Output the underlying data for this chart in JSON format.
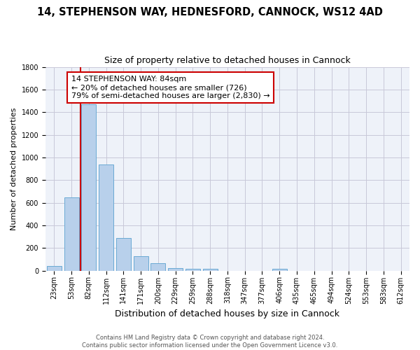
{
  "title1": "14, STEPHENSON WAY, HEDNESFORD, CANNOCK, WS12 4AD",
  "title2": "Size of property relative to detached houses in Cannock",
  "xlabel": "Distribution of detached houses by size in Cannock",
  "ylabel": "Number of detached properties",
  "footer1": "Contains HM Land Registry data © Crown copyright and database right 2024.",
  "footer2": "Contains public sector information licensed under the Open Government Licence v3.0.",
  "categories": [
    "23sqm",
    "53sqm",
    "82sqm",
    "112sqm",
    "141sqm",
    "171sqm",
    "200sqm",
    "229sqm",
    "259sqm",
    "288sqm",
    "318sqm",
    "347sqm",
    "377sqm",
    "406sqm",
    "435sqm",
    "465sqm",
    "494sqm",
    "524sqm",
    "553sqm",
    "583sqm",
    "612sqm"
  ],
  "values": [
    40,
    650,
    1470,
    935,
    290,
    130,
    65,
    25,
    15,
    15,
    0,
    0,
    0,
    15,
    0,
    0,
    0,
    0,
    0,
    0,
    0
  ],
  "bar_color": "#b8d0eb",
  "bar_edge_color": "#6aaad4",
  "vline_color": "#cc0000",
  "vline_x": 2,
  "annotation_text": "14 STEPHENSON WAY: 84sqm\n← 20% of detached houses are smaller (726)\n79% of semi-detached houses are larger (2,830) →",
  "ylim": [
    0,
    1800
  ],
  "yticks": [
    0,
    200,
    400,
    600,
    800,
    1000,
    1200,
    1400,
    1600,
    1800
  ],
  "grid_color": "#c8c8d8",
  "background_color": "#ffffff",
  "title1_fontsize": 10.5,
  "title2_fontsize": 9,
  "ax_background": "#eef2f9",
  "annotation_fontsize": 8,
  "ylabel_fontsize": 8,
  "xlabel_fontsize": 9,
  "footer_fontsize": 6,
  "tick_fontsize": 7
}
